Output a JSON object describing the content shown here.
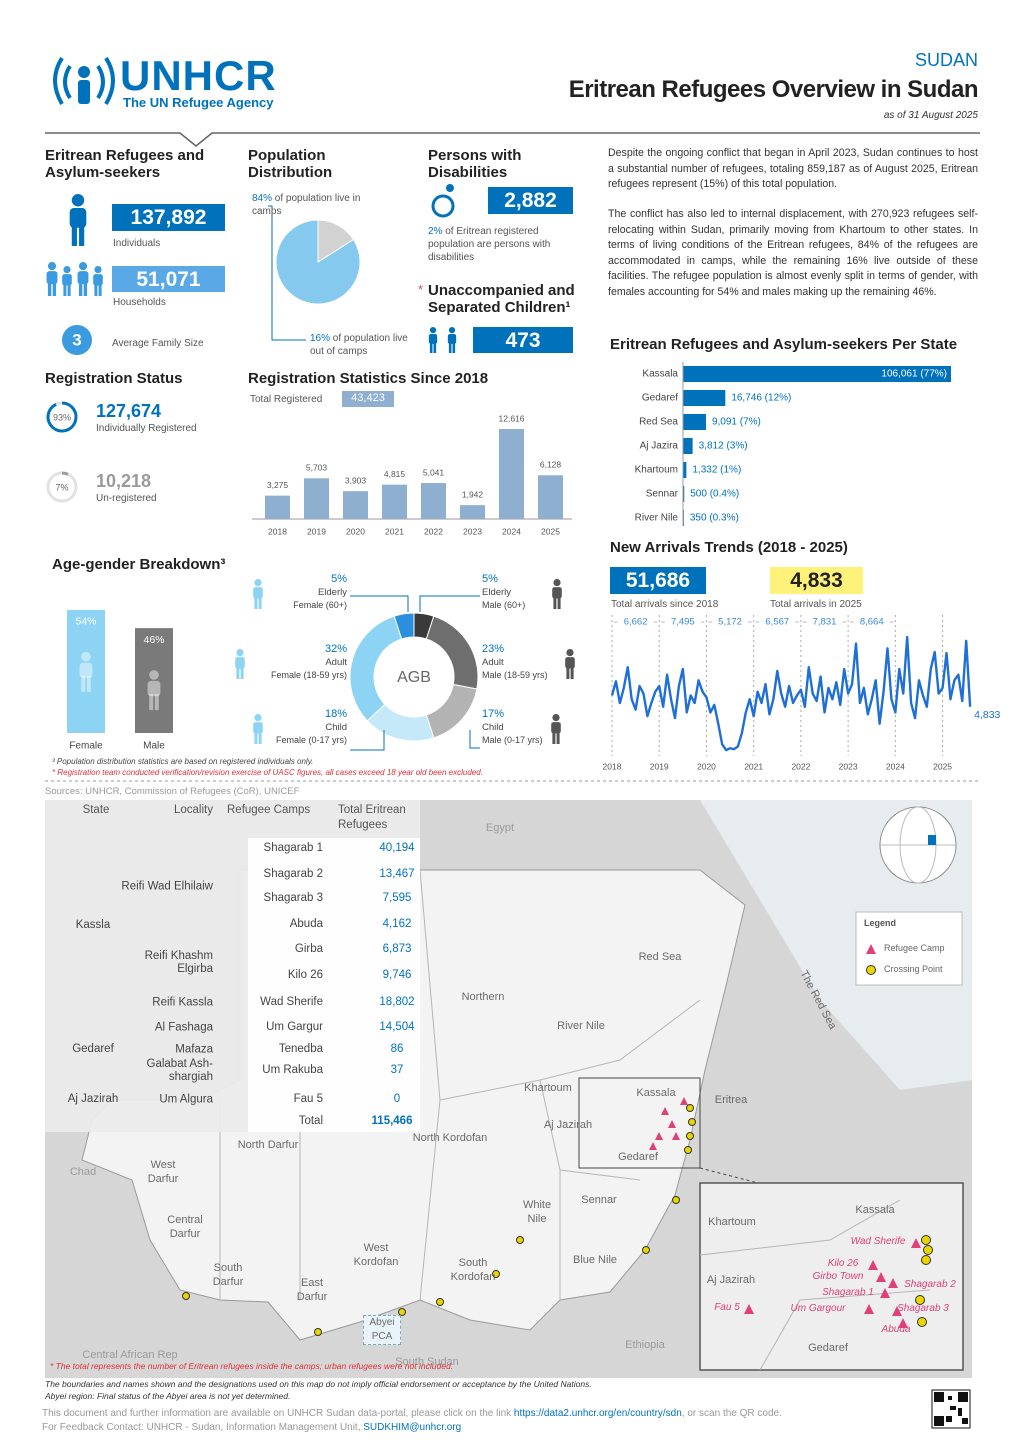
{
  "header": {
    "logo": "UNHCR",
    "logo_tagline": "The UN Refugee Agency",
    "country": "SUDAN",
    "title": "Eritrean Refugees Overview in Sudan",
    "date": "as of 31 August 2025"
  },
  "population": {
    "title": "Eritrean Refugees and Asylum-seekers",
    "individuals": "137,892",
    "individuals_label": "Individuals",
    "households": "51,071",
    "households_label": "Households",
    "family_size": "3",
    "family_size_label": "Average Family Size"
  },
  "distribution": {
    "type": "pie",
    "title": "Population Distribution",
    "values": [
      84,
      16
    ],
    "value_labels": [
      "84%",
      "16%"
    ],
    "labels": [
      "of population live in camps",
      "of population live out of camps"
    ],
    "colors": [
      "#86c9ee",
      "#d2d2d2"
    ]
  },
  "disabilities": {
    "title": "Persons with Disabilities",
    "value": "2,882",
    "share": "2%",
    "share_label": "of Eritrean registered population are persons with disabilities"
  },
  "uasc": {
    "marker": "*",
    "title": "Unaccompanied and Separated Children¹",
    "value": "473"
  },
  "summary": {
    "paragraphs": [
      "Despite the ongoing conflict that began in April 2023, Sudan continues to host a substantial number of refugees, totaling 859,187 as of August 2025, Eritrean refugees represent (15%) of this total population.",
      "The conflict has also led to internal displacement, with 270,923 refugees self-relocating within Sudan, primarily moving from Khartoum to other states. In terms of living conditions of the Eritrean refugees, 84% of the refugees are accommodated in camps, while the remaining 16% live outside of these facilities. The refugee population is almost evenly split in terms of gender, with females accounting for 54% and males making up the remaining 46%."
    ]
  },
  "registration_status": {
    "title": "Registration Status",
    "items": [
      {
        "value": 93,
        "label": "93%",
        "count": "127,674",
        "caption": "Individually Registered",
        "color": "#0072bc"
      },
      {
        "value": 7,
        "label": "7%",
        "count": "10,218",
        "caption": "Un-registered",
        "color": "#9a9a9a"
      }
    ]
  },
  "registration_stats": {
    "type": "bar",
    "title": "Registration Statistics Since 2018",
    "total_label": "Total Registered",
    "total": "43,423",
    "categories": [
      "2018",
      "2019",
      "2020",
      "2021",
      "2022",
      "2023",
      "2024",
      "2025"
    ],
    "values": [
      3275,
      5703,
      3903,
      4815,
      5041,
      1942,
      12616,
      6128
    ],
    "value_labels": [
      "3,275",
      "5,703",
      "3,903",
      "4,815",
      "5,041",
      "1,942",
      "12,616",
      "6,128"
    ],
    "color": "#8eafd0"
  },
  "state_chart": {
    "type": "bar",
    "orientation": "horizontal",
    "title": "Eritrean Refugees and Asylum-seekers Per State",
    "categories": [
      "Kassala",
      "Gedaref",
      "Red Sea",
      "Aj Jazira",
      "Khartoum",
      "Sennar",
      "River Nile"
    ],
    "values": [
      106061,
      16746,
      9091,
      3812,
      1332,
      500,
      350
    ],
    "value_labels": [
      "106,061 (77%)",
      "16,746 (12%)",
      "9,091 (7%)",
      "3,812 (3%)",
      "1,332 (1%)",
      "500 (0.4%)",
      "350 (0.3%)"
    ],
    "color": "#0072bc"
  },
  "new_arrivals": {
    "type": "line",
    "title": "New Arrivals Trends (2018 -  2025)",
    "total": "51,686",
    "total_label": "Total arrivals since 2018",
    "total_2025": "4,833",
    "total_2025_label": "Total arrivals in 2025",
    "year_totals": [
      "6,662",
      "7,495",
      "5,172",
      "6,567",
      "7,831",
      "8,664"
    ],
    "xlim": [
      2018,
      2025.75
    ],
    "xticks": [
      2018,
      2019,
      2020,
      2021,
      2022,
      2023,
      2024,
      2025
    ],
    "values": [
      600,
      750,
      520,
      680,
      900,
      560,
      450,
      700,
      620,
      380,
      520,
      640,
      700,
      480,
      820,
      560,
      360,
      700,
      880,
      420,
      600,
      520,
      760,
      640,
      580,
      420,
      500,
      300,
      80,
      20,
      40,
      30,
      60,
      200,
      420,
      560,
      380,
      640,
      520,
      720,
      400,
      560,
      860,
      620,
      480,
      700,
      520,
      600,
      660,
      480,
      900,
      620,
      540,
      800,
      420,
      680,
      560,
      740,
      500,
      880,
      620,
      720,
      1150,
      520,
      680,
      400,
      560,
      760,
      300,
      640,
      1100,
      560,
      420,
      880,
      620,
      1220,
      520,
      360,
      760,
      600,
      480,
      880,
      1060,
      620,
      680,
      1050,
      560,
      760,
      820,
      540,
      1180,
      480
    ],
    "end_label": "4,833",
    "color": "#1f6fd6"
  },
  "age_gender": {
    "title": "Age-gender Breakdown³",
    "gender_bars": {
      "type": "bar",
      "categories": [
        "Female",
        "Male"
      ],
      "values": [
        54,
        46
      ],
      "value_labels": [
        "54%",
        "46%"
      ],
      "colors": [
        "#8dd3f3",
        "#7a7a7a"
      ]
    },
    "donut": {
      "type": "donut",
      "center_label": "AGB",
      "segments": [
        {
          "value": 5,
          "label": "5%",
          "group": "Elderly",
          "sex": "Male (60+)",
          "color": "#3a3a3a"
        },
        {
          "value": 23,
          "label": "23%",
          "group": "Adult",
          "sex": "Male (18-59 yrs)",
          "color": "#6e6e6e"
        },
        {
          "value": 17,
          "label": "17%",
          "group": "Child",
          "sex": "Male (0-17 yrs)",
          "color": "#b3b3b3"
        },
        {
          "value": 18,
          "label": "18%",
          "group": "Child",
          "sex": "Female (0-17 yrs)",
          "color": "#c6e9f9"
        },
        {
          "value": 32,
          "label": "32%",
          "group": "Adult",
          "sex": "Female (18-59 yrs)",
          "color": "#8dd3f3"
        },
        {
          "value": 5,
          "label": "5%",
          "group": "Elderly",
          "sex": "Female (60+)",
          "color": "#2b8fe0"
        }
      ]
    }
  },
  "footnotes": {
    "note1": "³ Population distribution statistics are based on registered individuals only.",
    "note2": "* Registration team conducted verification/revision exercise of UASC figures, all cases exceed 18 year old been excluded.",
    "sources": "Sources: UNHCR, Commission of Refugees (CoR), UNICEF"
  },
  "camps_table": {
    "headers": [
      "State",
      "Locality",
      "Refugee Camps",
      "Total Eritrean Refugees"
    ],
    "states": [
      {
        "name": "Kassla",
        "localities": [
          {
            "name": "Reifi Wad Elhilaiw",
            "camps": [
              {
                "name": "Shagarab 1",
                "total": "40,194"
              },
              {
                "name": "Shagarab 2",
                "total": "13,467"
              },
              {
                "name": "Shagarab 3",
                "total": "7,595"
              },
              {
                "name": "Abuda",
                "total": "4,162"
              }
            ]
          },
          {
            "name": "Reifi Khashm Elgirba",
            "camps": [
              {
                "name": "Girba",
                "total": "6,873"
              },
              {
                "name": "Kilo 26",
                "total": "9,746"
              }
            ]
          },
          {
            "name": "Reifi Kassla",
            "camps": [
              {
                "name": "Wad Sherife",
                "total": "18,802"
              }
            ]
          }
        ]
      },
      {
        "name": "Gedaref",
        "localities": [
          {
            "name": "Al Fashaga",
            "camps": [
              {
                "name": "Um Gargur",
                "total": "14,504"
              }
            ]
          },
          {
            "name": "Mafaza",
            "camps": [
              {
                "name": "Tenedba",
                "total": "86"
              }
            ]
          },
          {
            "name": "Galabat Ash-shargiah",
            "camps": [
              {
                "name": "Um Rakuba",
                "total": "37"
              }
            ]
          }
        ]
      },
      {
        "name": "Aj Jazirah",
        "localities": [
          {
            "name": "Um Algura",
            "camps": [
              {
                "name": "Fau 5",
                "total": "0"
              }
            ]
          }
        ]
      }
    ],
    "total_label": "Total",
    "total": "115,466"
  },
  "map": {
    "labels": [
      "Egypt",
      "Northern",
      "River Nile",
      "Red Sea",
      "The Red Sea",
      "Khartoum",
      "Kassala",
      "Eritrea",
      "Aj Jazirah",
      "Gedaref",
      "North Kordofan",
      "North Darfur",
      "West Darfur",
      "Chad",
      "Central Darfur",
      "South Darfur",
      "East Darfur",
      "West Kordofan",
      "South Kordofan",
      "White Nile",
      "Sennar",
      "Blue Nile",
      "Abyei PCA",
      "Central African Rep",
      "South Sudan",
      "Ethiopia"
    ],
    "legend": {
      "title": "Legend",
      "camp": "Refugee Camp",
      "crossing": "Crossing Point"
    },
    "inset_labels": [
      "Kassala",
      "Khartoum",
      "Aj Jazirah",
      "Gedaref"
    ],
    "inset_camps": [
      "Wad Sherife",
      "Kilo 26",
      "Girbo Town",
      "Shagarab 1",
      "Shagarab 2",
      "Um Gargour",
      "Shagarab 3",
      "Abuda",
      "Fau 5"
    ],
    "note": "* The total represents the number of Eritrean refugees inside the camps; urban refugees were not included.",
    "disclaimer": "The boundaries and names shown and the designations used on this map do not imply official endorsement or acceptance by the United Nations.",
    "abyei": "Abyei region: Final status of the Abyei area is not yet determined."
  },
  "footer": {
    "text": "This document and further information are available on UNHCR Sudan data-portal, please click on the link",
    "link": "https://data2.unhcr.org/en/country/sdn",
    "text2": ", or scan the QR code.",
    "contact": "For Feedback Contact: UNHCR - Sudan, Information Management Unit,",
    "email": "SUDKHIM@unhcr.org"
  }
}
